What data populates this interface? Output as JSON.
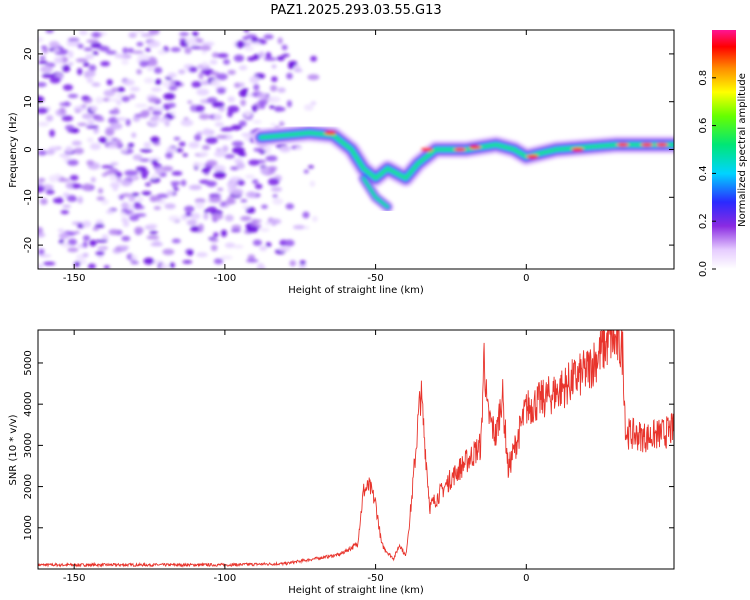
{
  "title": "PAZ1.2025.293.03.55.G13",
  "chart_data": [
    {
      "type": "heatmap",
      "xlabel": "Height of straight line (km)",
      "ylabel": "Frequency (Hz)",
      "xlim": [
        -162,
        49
      ],
      "ylim": [
        -25,
        25
      ],
      "x_ticks": [
        -150,
        -100,
        -50,
        0
      ],
      "y_ticks": [
        -20,
        -10,
        0,
        10,
        20
      ],
      "colorbar": {
        "label": "Normalized spectral amplitude",
        "range": [
          0,
          1
        ],
        "ticks": [
          0.0,
          0.2,
          0.4,
          0.6,
          0.8
        ]
      },
      "ridge": {
        "description_points": [
          {
            "x": -88,
            "y": 2.5
          },
          {
            "x": -80,
            "y": 3
          },
          {
            "x": -72,
            "y": 3.5
          },
          {
            "x": -64,
            "y": 3
          },
          {
            "x": -58,
            "y": 0
          },
          {
            "x": -54,
            "y": -4
          },
          {
            "x": -50,
            "y": -6
          },
          {
            "x": -46,
            "y": -4
          },
          {
            "x": -40,
            "y": -6
          },
          {
            "x": -36,
            "y": -3
          },
          {
            "x": -30,
            "y": 0
          },
          {
            "x": -20,
            "y": 0
          },
          {
            "x": -10,
            "y": 1
          },
          {
            "x": -4,
            "y": 0
          },
          {
            "x": 0,
            "y": -1.5
          },
          {
            "x": 10,
            "y": 0
          },
          {
            "x": 20,
            "y": 0.5
          },
          {
            "x": 30,
            "y": 1
          },
          {
            "x": 49,
            "y": 1
          }
        ],
        "branch": [
          {
            "x": -54,
            "y": -6
          },
          {
            "x": -50,
            "y": -10
          },
          {
            "x": -46,
            "y": -12
          }
        ],
        "noise_region_x": [
          -162,
          -70
        ]
      }
    },
    {
      "type": "line",
      "xlabel": "Height of straight line (km)",
      "ylabel": "SNR (10 * v/v)",
      "xlim": [
        -162,
        49
      ],
      "ylim": [
        0,
        5800
      ],
      "x_ticks": [
        -150,
        -100,
        -50,
        0
      ],
      "y_ticks": [
        1000,
        2000,
        3000,
        4000,
        5000
      ],
      "series": [
        {
          "name": "SNR",
          "color": "#e8342c",
          "x": [
            -162,
            -100,
            -80,
            -70,
            -62,
            -56,
            -54,
            -52,
            -50,
            -48,
            -46,
            -44,
            -42,
            -40,
            -38,
            -36,
            -35,
            -34,
            -32,
            -30,
            -25,
            -20,
            -15,
            -14,
            -13,
            -10,
            -8,
            -6,
            -4,
            -2,
            0,
            10,
            20,
            25,
            28,
            31,
            32,
            33,
            40,
            46,
            49
          ],
          "values": [
            100,
            100,
            130,
            250,
            350,
            600,
            1900,
            2000,
            1600,
            600,
            400,
            250,
            600,
            300,
            1700,
            3500,
            4300,
            3400,
            1500,
            1700,
            2200,
            2600,
            3000,
            5300,
            3800,
            3200,
            4300,
            2400,
            2900,
            3400,
            3900,
            4300,
            4800,
            5300,
            5600,
            5400,
            5300,
            3300,
            3200,
            3300,
            3400
          ]
        }
      ]
    }
  ]
}
